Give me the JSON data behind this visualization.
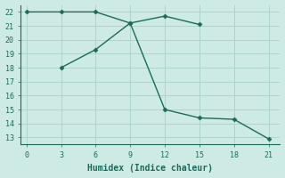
{
  "line1_x": [
    0,
    3,
    6,
    9,
    12,
    15
  ],
  "line1_y": [
    22,
    22,
    22,
    21.2,
    21.7,
    21.1
  ],
  "line2_x": [
    3,
    6,
    9,
    12,
    15,
    18,
    21
  ],
  "line2_y": [
    18,
    19.3,
    21.2,
    15.0,
    14.4,
    14.3,
    12.9
  ],
  "line_color": "#1a6b5a",
  "marker": "D",
  "markersize": 2.5,
  "xlabel": "Humidex (Indice chaleur)",
  "xlim": [
    -0.5,
    22
  ],
  "ylim": [
    12.5,
    22.5
  ],
  "xticks": [
    0,
    3,
    6,
    9,
    12,
    15,
    18,
    21
  ],
  "yticks": [
    13,
    14,
    15,
    16,
    17,
    18,
    19,
    20,
    21,
    22
  ],
  "bg_color": "#ceeae4",
  "grid_color": "#aed4cc",
  "font_family": "monospace",
  "xlabel_fontsize": 7,
  "tick_fontsize": 6
}
